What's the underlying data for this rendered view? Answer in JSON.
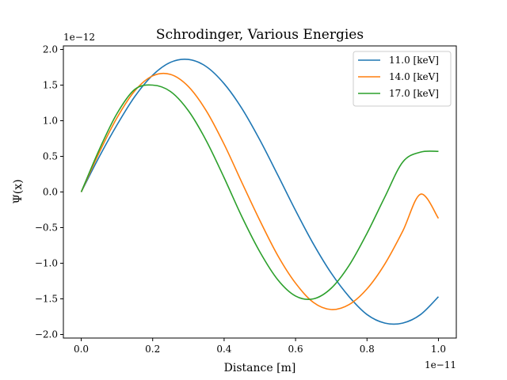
{
  "chart_data": {
    "type": "line",
    "title": "Schrodinger, Various Energies",
    "xlabel": "Distance [m]",
    "ylabel": "Ψ(x)",
    "x_offset_label": "1e−11",
    "y_offset_label": "1e−12",
    "xlim": [
      -0.05,
      1.05
    ],
    "ylim": [
      -2.05,
      2.05
    ],
    "x_ticks": [
      {
        "value": 0.0,
        "label": "0.0"
      },
      {
        "value": 0.2,
        "label": "0.2"
      },
      {
        "value": 0.4,
        "label": "0.4"
      },
      {
        "value": 0.6,
        "label": "0.6"
      },
      {
        "value": 0.8,
        "label": "0.8"
      },
      {
        "value": 1.0,
        "label": "1.0"
      }
    ],
    "y_ticks": [
      {
        "value": 2.0,
        "label": "2.0"
      },
      {
        "value": 1.5,
        "label": "1.5"
      },
      {
        "value": 1.0,
        "label": "1.0"
      },
      {
        "value": 0.5,
        "label": "0.5"
      },
      {
        "value": 0.0,
        "label": "0.0"
      },
      {
        "value": -0.5,
        "label": "−0.5"
      },
      {
        "value": -1.0,
        "label": "−1.0"
      },
      {
        "value": -1.5,
        "label": "−1.5"
      },
      {
        "value": -2.0,
        "label": "−2.0"
      }
    ],
    "grid": false,
    "legend_position": "top-right",
    "x": [
      0.0,
      0.05,
      0.1,
      0.15,
      0.2,
      0.25,
      0.3,
      0.35,
      0.4,
      0.45,
      0.5,
      0.55,
      0.6,
      0.65,
      0.7,
      0.75,
      0.8,
      0.85,
      0.9,
      0.95,
      1.0
    ],
    "series": [
      {
        "name": "11.0 [keV]",
        "color": "#1f77b4",
        "values": [
          0.0,
          0.49,
          0.94,
          1.34,
          1.64,
          1.82,
          1.86,
          1.76,
          1.52,
          1.17,
          0.73,
          0.24,
          -0.26,
          -0.73,
          -1.14,
          -1.47,
          -1.72,
          -1.84,
          -1.84,
          -1.72,
          -1.47
        ]
      },
      {
        "name": "14.0 [keV]",
        "color": "#ff7f0e",
        "values": [
          0.0,
          0.55,
          1.04,
          1.42,
          1.63,
          1.65,
          1.48,
          1.14,
          0.67,
          0.13,
          -0.4,
          -0.89,
          -1.28,
          -1.55,
          -1.65,
          -1.58,
          -1.36,
          -1.01,
          -0.55,
          -0.03,
          -0.37
        ]
      },
      {
        "name": "17.0 [keV]",
        "color": "#2ca02c",
        "values": [
          0.0,
          0.59,
          1.1,
          1.44,
          1.5,
          1.41,
          1.14,
          0.72,
          0.2,
          -0.35,
          -0.84,
          -1.23,
          -1.46,
          -1.5,
          -1.35,
          -1.03,
          -0.58,
          -0.07,
          0.42,
          0.56,
          0.57
        ]
      }
    ]
  }
}
